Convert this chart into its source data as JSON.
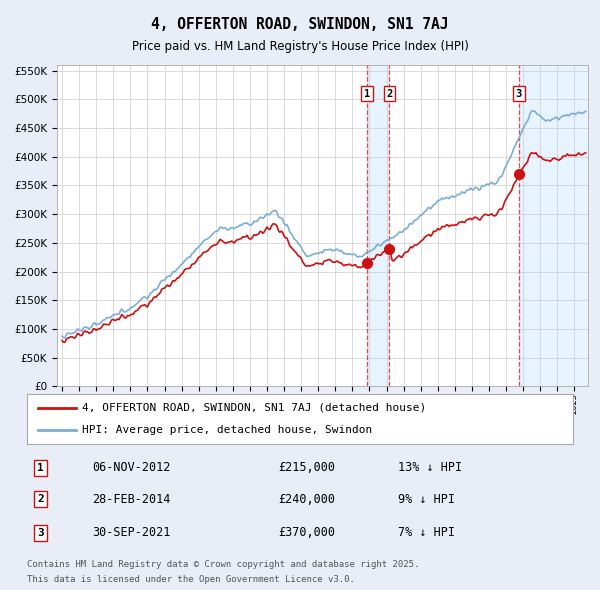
{
  "title": "4, OFFERTON ROAD, SWINDON, SN1 7AJ",
  "subtitle": "Price paid vs. HM Land Registry's House Price Index (HPI)",
  "legend_line1": "4, OFFERTON ROAD, SWINDON, SN1 7AJ (detached house)",
  "legend_line2": "HPI: Average price, detached house, Swindon",
  "footer_line1": "Contains HM Land Registry data © Crown copyright and database right 2025.",
  "footer_line2": "This data is licensed under the Open Government Licence v3.0.",
  "transactions": [
    {
      "label": "1",
      "date": "06-NOV-2012",
      "price": 215000,
      "note": "13% ↓ HPI",
      "date_num": 2012.846
    },
    {
      "label": "2",
      "date": "28-FEB-2014",
      "price": 240000,
      "note": "9% ↓ HPI",
      "date_num": 2014.163
    },
    {
      "label": "3",
      "date": "30-SEP-2021",
      "price": 370000,
      "note": "7% ↓ HPI",
      "date_num": 2021.748
    }
  ],
  "hpi_color": "#7aaed6",
  "price_color": "#cc1111",
  "vline_color": "#ee3333",
  "shade_color": "#ddeeff",
  "background_color": "#e8edf8",
  "plot_bg": "#ffffff",
  "ylim": [
    0,
    560000
  ],
  "ytick_step": 50000,
  "xmin": 1994.7,
  "xmax": 2025.8
}
